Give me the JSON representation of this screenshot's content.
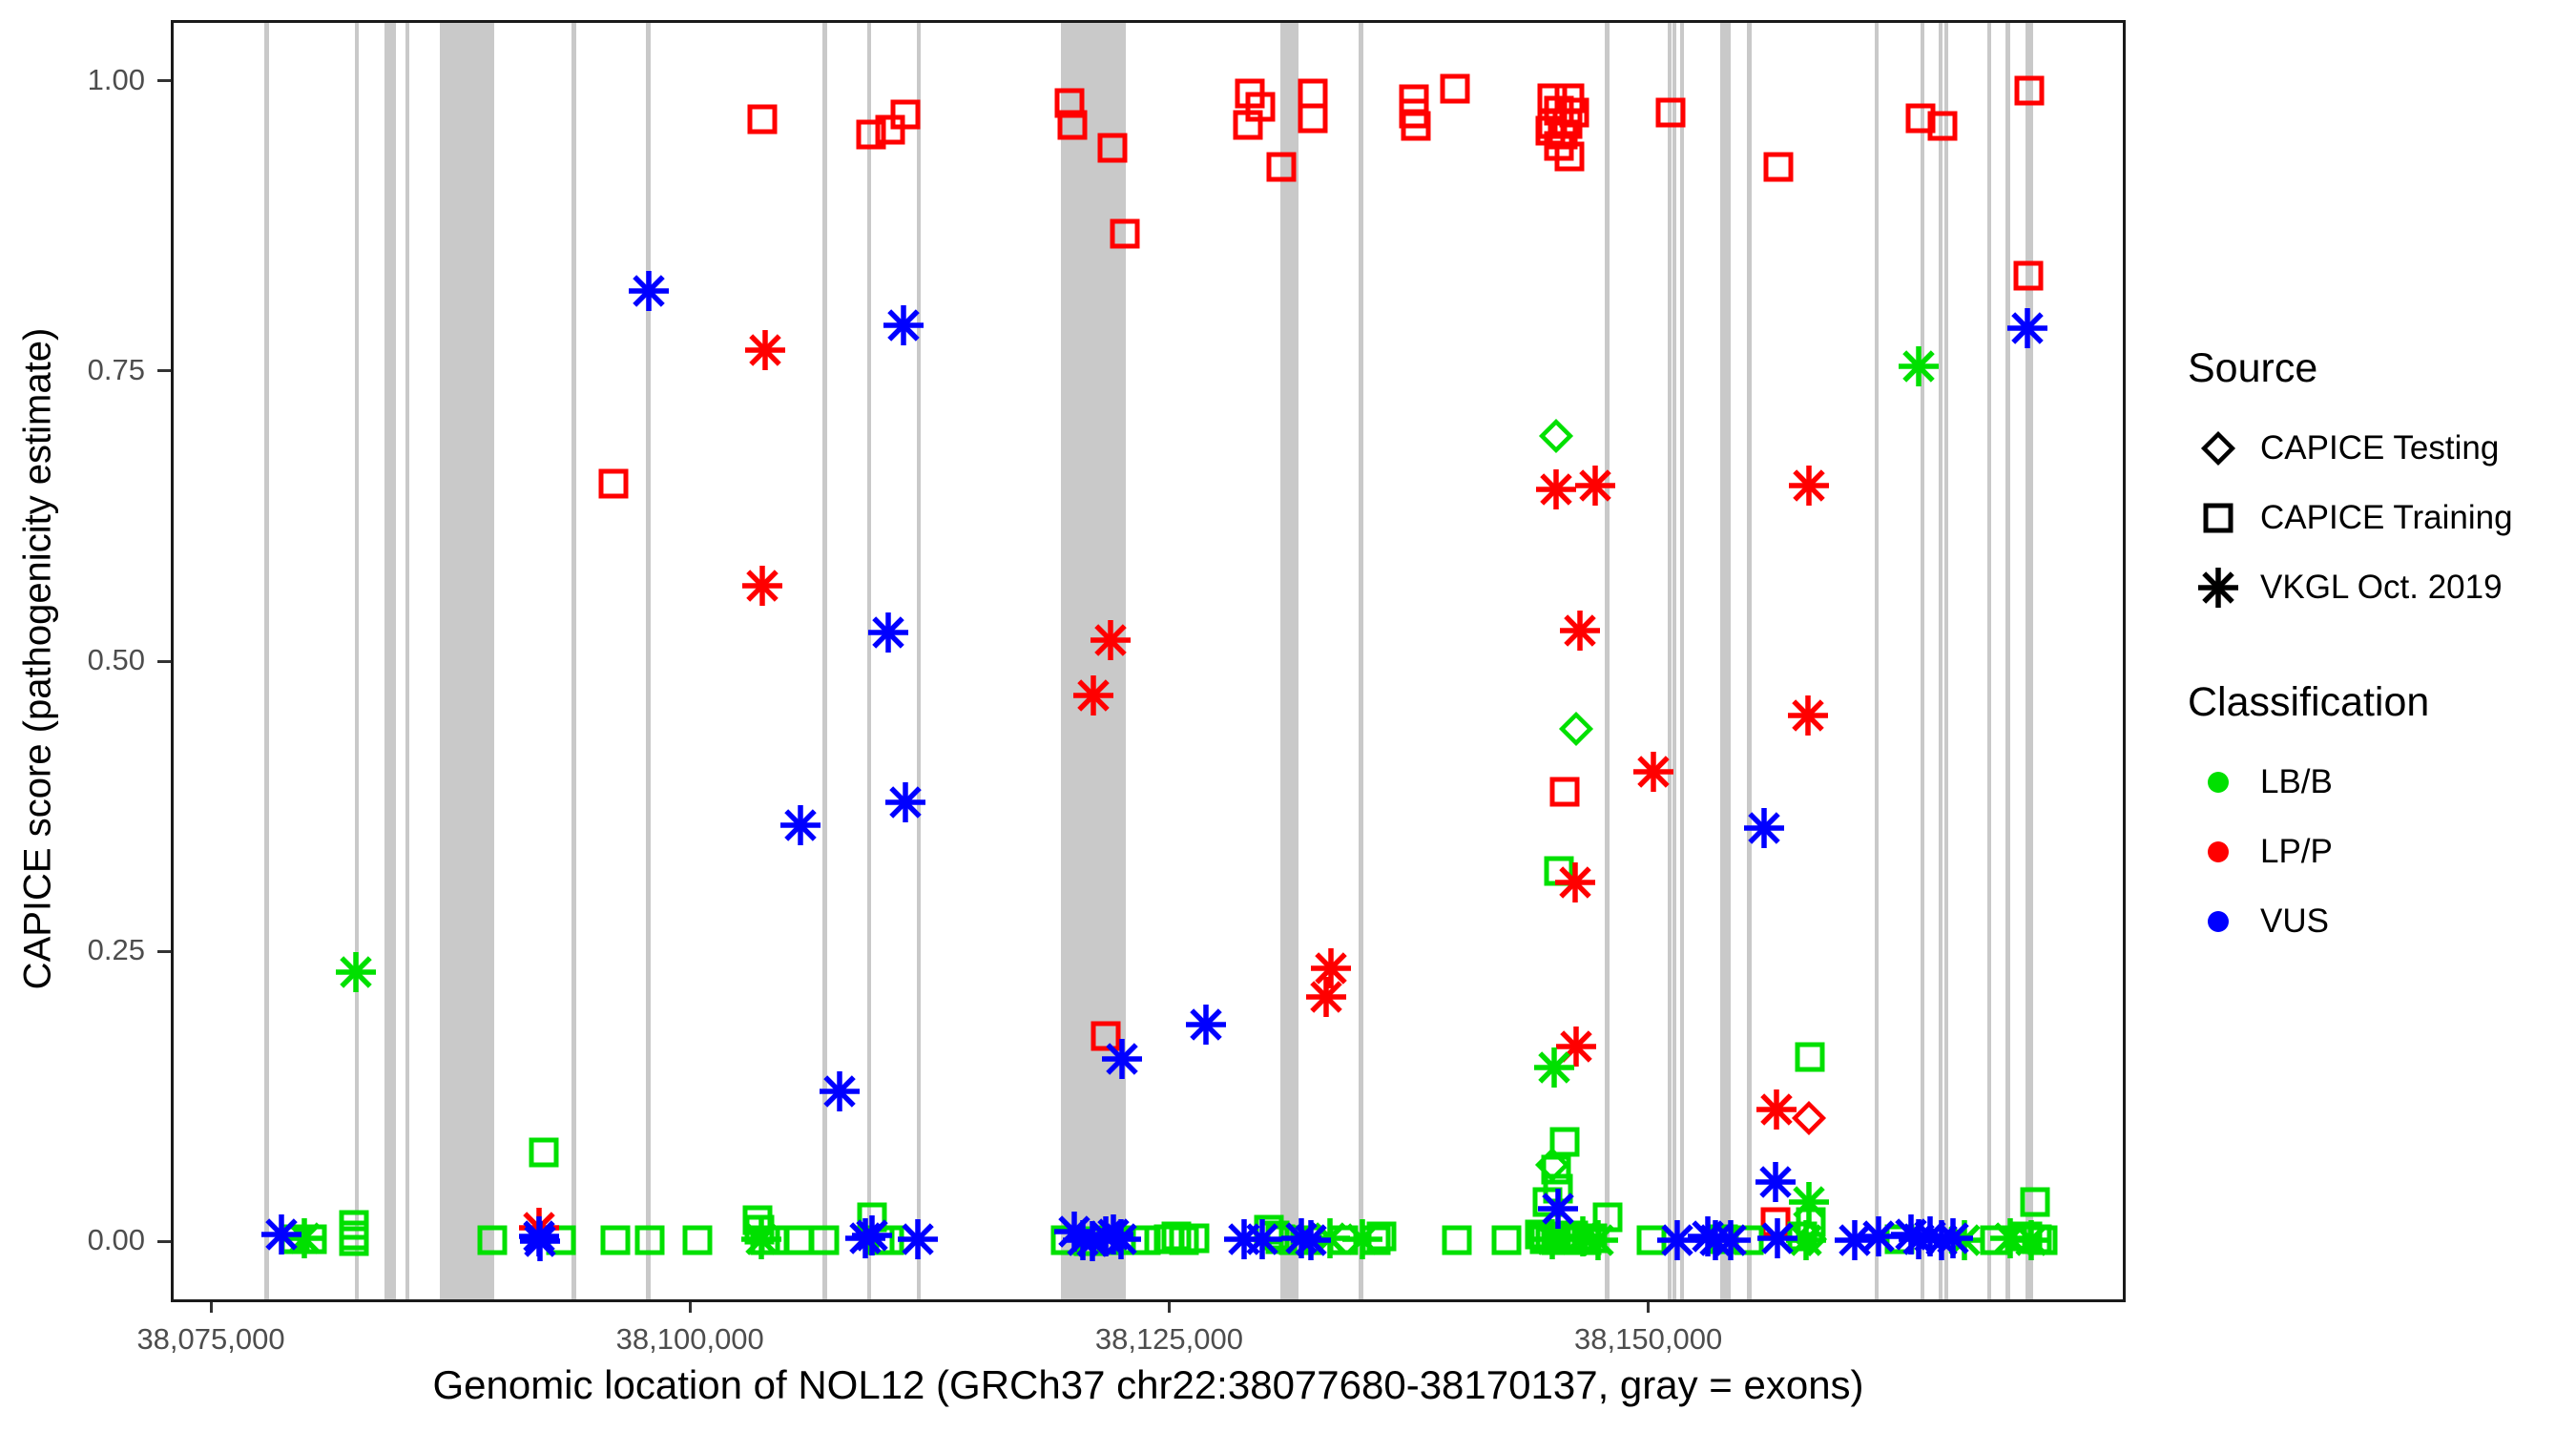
{
  "axes": {
    "y_title": "CAPICE score (pathogenicity estimate)",
    "x_title": "Genomic location of NOL12 (GRCh37 chr22:38077680-38170137, gray = exons)"
  },
  "legend": {
    "source": {
      "title": "Source",
      "items": [
        {
          "label": "CAPICE Testing",
          "shape": "diamond"
        },
        {
          "label": "CAPICE Training",
          "shape": "square"
        },
        {
          "label": "VKGL Oct. 2019",
          "shape": "asterisk"
        }
      ],
      "symbol_color": "#000000"
    },
    "classification": {
      "title": "Classification",
      "items": [
        {
          "label": "LB/B",
          "color": "#00e000"
        },
        {
          "label": "LP/P",
          "color": "#ff0000"
        },
        {
          "label": "VUS",
          "color": "#0000ff"
        }
      ]
    }
  },
  "chart_data": {
    "type": "scatter",
    "title": "",
    "xlabel": "Genomic location of NOL12 (GRCh37 chr22:38077680-38170137, gray = exons)",
    "ylabel": "CAPICE score (pathogenicity estimate)",
    "xlim": [
      38073057,
      38174760
    ],
    "ylim": [
      -0.05,
      1.05
    ],
    "grid": "off",
    "legend_position": "right",
    "x_ticks": [
      {
        "label": "38,075,000",
        "bp": 38075000
      },
      {
        "label": "38,100,000",
        "bp": 38100000
      },
      {
        "label": "38,125,000",
        "bp": 38125000
      },
      {
        "label": "38,150,000",
        "bp": 38150000
      }
    ],
    "y_ticks": [
      {
        "label": "1.00",
        "value": 1.0
      },
      {
        "label": "0.75",
        "value": 0.75
      },
      {
        "label": "0.50",
        "value": 0.5
      },
      {
        "label": "0.25",
        "value": 0.25
      },
      {
        "label": "0.00",
        "value": 0.0
      }
    ],
    "shape_by": "Source",
    "color_by": "Classification",
    "source_codes": {
      "T": "CAPICE Testing",
      "R": "CAPICE Training",
      "V": "VKGL Oct. 2019"
    },
    "source_shapes": {
      "CAPICE Testing": "diamond",
      "CAPICE Training": "square",
      "VKGL Oct. 2019": "asterisk"
    },
    "class_codes": {
      "B": "LB/B",
      "P": "LP/P",
      "U": "VUS"
    },
    "class_colors": {
      "LB/B": "#00e000",
      "LP/P": "#ff0000",
      "VUS": "#0000ff"
    },
    "exon_color": "#c9c9c9",
    "exons_bp": [
      [
        38077780,
        38078030
      ],
      [
        38082500,
        38082720
      ],
      [
        38084050,
        38084650
      ],
      [
        38085140,
        38085360
      ],
      [
        38086930,
        38089770
      ],
      [
        38093840,
        38094060
      ],
      [
        38097720,
        38097940
      ],
      [
        38106920,
        38107140
      ],
      [
        38109230,
        38109450
      ],
      [
        38111820,
        38112040
      ],
      [
        38119360,
        38122740
      ],
      [
        38130800,
        38131750
      ],
      [
        38134900,
        38135150
      ],
      [
        38147750,
        38147970
      ],
      [
        38151000,
        38151180
      ],
      [
        38151250,
        38151430
      ],
      [
        38151650,
        38151830
      ],
      [
        38153730,
        38154280
      ],
      [
        38155160,
        38155380
      ],
      [
        38161820,
        38162040
      ],
      [
        38164210,
        38164430
      ],
      [
        38165170,
        38165350
      ],
      [
        38165470,
        38165650
      ],
      [
        38167700,
        38167900
      ],
      [
        38168650,
        38168900
      ],
      [
        38169670,
        38170090
      ]
    ],
    "point_format": [
      "bp",
      "score",
      "source_code",
      "classification_code"
    ],
    "points": [
      [
        38103795,
        0.967,
        "R",
        "P"
      ],
      [
        38109467,
        0.954,
        "R",
        "P"
      ],
      [
        38110460,
        0.958,
        "R",
        "P"
      ],
      [
        38111257,
        0.971,
        "R",
        "P"
      ],
      [
        38119799,
        0.981,
        "R",
        "P"
      ],
      [
        38119934,
        0.962,
        "R",
        "P"
      ],
      [
        38122028,
        0.942,
        "R",
        "P"
      ],
      [
        38122684,
        0.868,
        "R",
        "P"
      ],
      [
        38129195,
        0.989,
        "R",
        "P"
      ],
      [
        38129737,
        0.978,
        "R",
        "P"
      ],
      [
        38129130,
        0.962,
        "R",
        "P"
      ],
      [
        38130841,
        0.926,
        "R",
        "P"
      ],
      [
        38132487,
        0.989,
        "R",
        "P"
      ],
      [
        38132487,
        0.968,
        "R",
        "P"
      ],
      [
        38137779,
        0.984,
        "R",
        "P"
      ],
      [
        38137779,
        0.972,
        "R",
        "P"
      ],
      [
        38137893,
        0.961,
        "R",
        "P"
      ],
      [
        38139922,
        0.993,
        "R",
        "P"
      ],
      [
        38144990,
        0.985,
        "R",
        "P"
      ],
      [
        38145890,
        0.985,
        "R",
        "P"
      ],
      [
        38145329,
        0.974,
        "R",
        "P"
      ],
      [
        38146116,
        0.973,
        "R",
        "P"
      ],
      [
        38144990,
        0.963,
        "R",
        "P"
      ],
      [
        38145779,
        0.963,
        "R",
        "P"
      ],
      [
        38144878,
        0.957,
        "R",
        "P"
      ],
      [
        38145554,
        0.954,
        "R",
        "P"
      ],
      [
        38145329,
        0.944,
        "R",
        "P"
      ],
      [
        38145891,
        0.935,
        "R",
        "P"
      ],
      [
        38151187,
        0.973,
        "R",
        "P"
      ],
      [
        38156806,
        0.926,
        "R",
        "P"
      ],
      [
        38164205,
        0.968,
        "R",
        "P"
      ],
      [
        38165329,
        0.961,
        "R",
        "P"
      ],
      [
        38169882,
        0.992,
        "R",
        "P"
      ],
      [
        38169832,
        0.832,
        "R",
        "P"
      ],
      [
        38095987,
        0.653,
        "R",
        "P"
      ],
      [
        38145618,
        0.387,
        "R",
        "P"
      ],
      [
        38121715,
        0.177,
        "R",
        "P"
      ],
      [
        38156659,
        0.017,
        "R",
        "P"
      ],
      [
        38158393,
        0.106,
        "T",
        "P"
      ],
      [
        38145170,
        0.694,
        "T",
        "B"
      ],
      [
        38146227,
        0.442,
        "T",
        "B"
      ],
      [
        38144990,
        0.066,
        "T",
        "B"
      ],
      [
        38158450,
        0.002,
        "T",
        "B"
      ],
      [
        38145324,
        0.319,
        "R",
        "B"
      ],
      [
        38158438,
        0.159,
        "R",
        "B"
      ],
      [
        38145618,
        0.086,
        "R",
        "B"
      ],
      [
        38145200,
        0.062,
        "R",
        "B"
      ],
      [
        38145284,
        0.045,
        "R",
        "B"
      ],
      [
        38144766,
        0.034,
        "R",
        "B"
      ],
      [
        38147872,
        0.021,
        "R",
        "B"
      ],
      [
        38158506,
        0.017,
        "R",
        "B"
      ],
      [
        38170177,
        0.034,
        "R",
        "B"
      ],
      [
        38109495,
        0.021,
        "R",
        "B"
      ],
      [
        38092375,
        0.077,
        "R",
        "B"
      ],
      [
        38079400,
        0.002,
        "R",
        "B"
      ],
      [
        38080300,
        0.002,
        "R",
        "B"
      ],
      [
        38082460,
        0.014,
        "R",
        "B"
      ],
      [
        38082460,
        0.005,
        "R",
        "B"
      ],
      [
        38082460,
        0.0,
        "R",
        "B"
      ],
      [
        38089672,
        0.001,
        "R",
        "B"
      ],
      [
        38093276,
        0.001,
        "R",
        "B"
      ],
      [
        38096095,
        0.001,
        "R",
        "B"
      ],
      [
        38097895,
        0.001,
        "R",
        "B"
      ],
      [
        38100377,
        0.001,
        "R",
        "B"
      ],
      [
        38103545,
        0.018,
        "R",
        "B"
      ],
      [
        38103600,
        0.01,
        "R",
        "B"
      ],
      [
        38103900,
        0.001,
        "R",
        "B"
      ],
      [
        38104440,
        0.001,
        "R",
        "B"
      ],
      [
        38105675,
        0.001,
        "R",
        "B"
      ],
      [
        38107027,
        0.001,
        "R",
        "B"
      ],
      [
        38109900,
        0.001,
        "R",
        "B"
      ],
      [
        38110400,
        0.001,
        "R",
        "B"
      ],
      [
        38119600,
        0.001,
        "R",
        "B"
      ],
      [
        38120800,
        0.0,
        "R",
        "B"
      ],
      [
        38122000,
        0.001,
        "R",
        "B"
      ],
      [
        38123200,
        0.001,
        "R",
        "B"
      ],
      [
        38123800,
        0.001,
        "R",
        "B"
      ],
      [
        38125000,
        0.002,
        "R",
        "B"
      ],
      [
        38125400,
        0.004,
        "R",
        "B"
      ],
      [
        38125800,
        0.001,
        "R",
        "B"
      ],
      [
        38126300,
        0.003,
        "R",
        "B"
      ],
      [
        38130200,
        0.01,
        "R",
        "B"
      ],
      [
        38130500,
        0.005,
        "R",
        "B"
      ],
      [
        38130800,
        0.002,
        "R",
        "B"
      ],
      [
        38131500,
        0.001,
        "R",
        "B"
      ],
      [
        38132200,
        0.001,
        "R",
        "B"
      ],
      [
        38134100,
        0.001,
        "R",
        "B"
      ],
      [
        38135800,
        0.001,
        "R",
        "B"
      ],
      [
        38136100,
        0.004,
        "R",
        "B"
      ],
      [
        38140030,
        0.001,
        "R",
        "B"
      ],
      [
        38142621,
        0.001,
        "R",
        "B"
      ],
      [
        38144350,
        0.006,
        "R",
        "B"
      ],
      [
        38144600,
        0.002,
        "R",
        "B"
      ],
      [
        38144900,
        0.004,
        "R",
        "B"
      ],
      [
        38145200,
        0.001,
        "R",
        "B"
      ],
      [
        38145500,
        0.003,
        "R",
        "B"
      ],
      [
        38145800,
        0.001,
        "R",
        "B"
      ],
      [
        38146100,
        0.005,
        "R",
        "B"
      ],
      [
        38146400,
        0.002,
        "R",
        "B"
      ],
      [
        38146800,
        0.001,
        "R",
        "B"
      ],
      [
        38147100,
        0.003,
        "R",
        "B"
      ],
      [
        38150168,
        0.001,
        "R",
        "B"
      ],
      [
        38153900,
        0.002,
        "R",
        "B"
      ],
      [
        38155241,
        0.001,
        "R",
        "B"
      ],
      [
        38158050,
        0.004,
        "R",
        "B"
      ],
      [
        38163121,
        0.002,
        "R",
        "B"
      ],
      [
        38168077,
        0.001,
        "R",
        "B"
      ],
      [
        38169770,
        0.004,
        "R",
        "B"
      ],
      [
        38170300,
        0.002,
        "R",
        "B"
      ],
      [
        38170600,
        0.001,
        "R",
        "B"
      ],
      [
        38103914,
        0.768,
        "V",
        "P"
      ],
      [
        38103755,
        0.565,
        "V",
        "P"
      ],
      [
        38121963,
        0.518,
        "V",
        "P"
      ],
      [
        38121063,
        0.47,
        "V",
        "P"
      ],
      [
        38145211,
        0.648,
        "V",
        "P"
      ],
      [
        38147240,
        0.651,
        "V",
        "P"
      ],
      [
        38158393,
        0.651,
        "V",
        "P"
      ],
      [
        38146456,
        0.526,
        "V",
        "P"
      ],
      [
        38158348,
        0.453,
        "V",
        "P"
      ],
      [
        38150288,
        0.405,
        "V",
        "P"
      ],
      [
        38146161,
        0.309,
        "V",
        "P"
      ],
      [
        38133440,
        0.235,
        "V",
        "P"
      ],
      [
        38133190,
        0.211,
        "V",
        "P"
      ],
      [
        38146227,
        0.168,
        "V",
        "P"
      ],
      [
        38156704,
        0.114,
        "V",
        "P"
      ],
      [
        38092100,
        0.012,
        "V",
        "P"
      ],
      [
        38164090,
        0.754,
        "V",
        "B"
      ],
      [
        38082585,
        0.232,
        "V",
        "B"
      ],
      [
        38145103,
        0.15,
        "V",
        "B"
      ],
      [
        38158393,
        0.034,
        "V",
        "B"
      ],
      [
        38079900,
        0.003,
        "V",
        "B"
      ],
      [
        38103700,
        0.002,
        "V",
        "B"
      ],
      [
        38133400,
        0.003,
        "V",
        "B"
      ],
      [
        38135100,
        0.002,
        "V",
        "B"
      ],
      [
        38145000,
        0.002,
        "V",
        "B"
      ],
      [
        38146600,
        0.004,
        "V",
        "B"
      ],
      [
        38147400,
        0.001,
        "V",
        "B"
      ],
      [
        38158250,
        0.001,
        "V",
        "B"
      ],
      [
        38166500,
        0.001,
        "V",
        "B"
      ],
      [
        38168868,
        0.003,
        "V",
        "B"
      ],
      [
        38170000,
        0.001,
        "V",
        "B"
      ],
      [
        38097827,
        0.819,
        "V",
        "U"
      ],
      [
        38111148,
        0.789,
        "V",
        "U"
      ],
      [
        38169757,
        0.787,
        "V",
        "U"
      ],
      [
        38110337,
        0.525,
        "V",
        "U"
      ],
      [
        38111257,
        0.378,
        "V",
        "U"
      ],
      [
        38105785,
        0.359,
        "V",
        "U"
      ],
      [
        38156028,
        0.356,
        "V",
        "U"
      ],
      [
        38126922,
        0.187,
        "V",
        "U"
      ],
      [
        38122560,
        0.157,
        "V",
        "U"
      ],
      [
        38107808,
        0.129,
        "V",
        "U"
      ],
      [
        38156659,
        0.051,
        "V",
        "U"
      ],
      [
        38145284,
        0.028,
        "V",
        "U"
      ],
      [
        38078700,
        0.006,
        "V",
        "U"
      ],
      [
        38092100,
        0.004,
        "V",
        "U"
      ],
      [
        38092150,
        0.0,
        "V",
        "U"
      ],
      [
        38109170,
        0.003,
        "V",
        "U"
      ],
      [
        38109500,
        0.005,
        "V",
        "U"
      ],
      [
        38111900,
        0.002,
        "V",
        "U"
      ],
      [
        38120050,
        0.008,
        "V",
        "U"
      ],
      [
        38120500,
        0.001,
        "V",
        "U"
      ],
      [
        38121000,
        0.0,
        "V",
        "U"
      ],
      [
        38121700,
        0.004,
        "V",
        "U"
      ],
      [
        38122100,
        0.006,
        "V",
        "U"
      ],
      [
        38122500,
        0.002,
        "V",
        "U"
      ],
      [
        38128900,
        0.002,
        "V",
        "U"
      ],
      [
        38129850,
        0.002,
        "V",
        "U"
      ],
      [
        38131900,
        0.003,
        "V",
        "U"
      ],
      [
        38132400,
        0.001,
        "V",
        "U"
      ],
      [
        38151521,
        0.001,
        "V",
        "U"
      ],
      [
        38153100,
        0.004,
        "V",
        "U"
      ],
      [
        38153500,
        0.001,
        "V",
        "U"
      ],
      [
        38154300,
        0.001,
        "V",
        "U"
      ],
      [
        38156749,
        0.003,
        "V",
        "U"
      ],
      [
        38160762,
        0.001,
        "V",
        "U"
      ],
      [
        38162000,
        0.004,
        "V",
        "U"
      ],
      [
        38163690,
        0.006,
        "V",
        "U"
      ],
      [
        38164100,
        0.002,
        "V",
        "U"
      ],
      [
        38164700,
        0.004,
        "V",
        "U"
      ],
      [
        38165300,
        0.001,
        "V",
        "U"
      ],
      [
        38165900,
        0.003,
        "V",
        "U"
      ]
    ]
  }
}
